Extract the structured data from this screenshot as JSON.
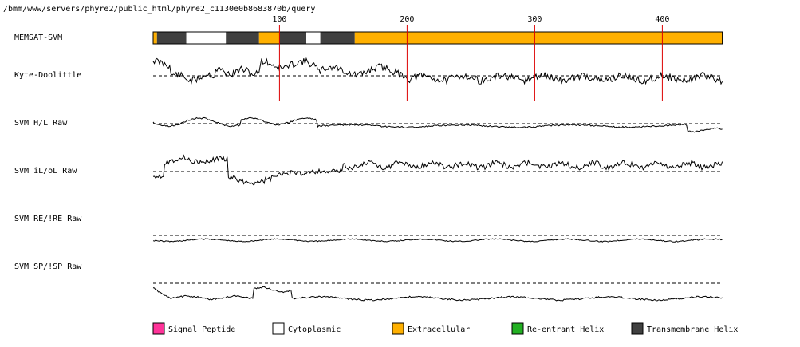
{
  "header": {
    "path": "/bmm/www/servers/phyre2/public_html/phyre2_c1130e0b8683870b/query"
  },
  "ruler": {
    "ticks": [
      {
        "position": 100,
        "label": "100"
      },
      {
        "position": 200,
        "label": "200"
      },
      {
        "position": 300,
        "label": "300"
      },
      {
        "position": 400,
        "label": "400"
      }
    ],
    "sequence_length": 447
  },
  "tracks": {
    "memsat": {
      "label": "MEMSAT-SVM"
    },
    "kyte": {
      "label": "Kyte-Doolittle"
    },
    "hl": {
      "label": "SVM H/L Raw"
    },
    "ilol": {
      "label": "SVM iL/oL Raw"
    },
    "reire": {
      "label": "SVM RE/!RE Raw"
    },
    "spisp": {
      "label": "SVM SP/!SP Raw"
    }
  },
  "colors": {
    "signal_peptide": "#ff3399",
    "cytoplasmic": "#ffffff",
    "extracellular": "#ffb000",
    "reentrant_helix": "#22b022",
    "transmembrane_helix": "#404040",
    "tick_line": "#dd0000"
  },
  "topology": [
    {
      "start": 1,
      "end": 4,
      "type": "extracellular"
    },
    {
      "start": 4,
      "end": 27,
      "type": "transmembrane_helix"
    },
    {
      "start": 27,
      "end": 58,
      "type": "cytoplasmic"
    },
    {
      "start": 58,
      "end": 84,
      "type": "transmembrane_helix"
    },
    {
      "start": 84,
      "end": 100,
      "type": "extracellular"
    },
    {
      "start": 100,
      "end": 121,
      "type": "transmembrane_helix"
    },
    {
      "start": 121,
      "end": 132,
      "type": "cytoplasmic"
    },
    {
      "start": 132,
      "end": 159,
      "type": "transmembrane_helix"
    },
    {
      "start": 159,
      "end": 447,
      "type": "extracellular"
    }
  ],
  "legend": [
    {
      "key": "signal_peptide",
      "label": "Signal Peptide"
    },
    {
      "key": "cytoplasmic",
      "label": "Cytoplasmic"
    },
    {
      "key": "extracellular",
      "label": "Extracellular"
    },
    {
      "key": "reentrant_helix",
      "label": "Re-entrant Helix"
    },
    {
      "key": "transmembrane_helix",
      "label": "Transmembrane Helix"
    }
  ]
}
